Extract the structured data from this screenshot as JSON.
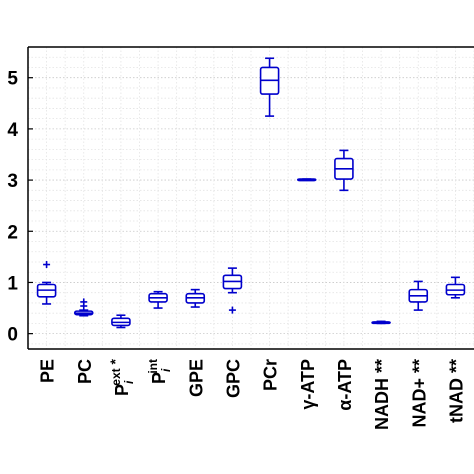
{
  "chart_data": {
    "type": "box",
    "title": "",
    "xlabel": "",
    "ylabel": "",
    "ylim": [
      -0.3,
      5.6
    ],
    "yticks": [
      0,
      1,
      2,
      3,
      4,
      5
    ],
    "grid": true,
    "box_color": "#0000cc",
    "categories": [
      {
        "label": "PE",
        "sup": "",
        "sub": "",
        "suffix": ""
      },
      {
        "label": "PC",
        "sup": "",
        "sub": "",
        "suffix": ""
      },
      {
        "label": "P",
        "sup": "ext",
        "sub": "i",
        "suffix": "*"
      },
      {
        "label": "P",
        "sup": "int",
        "sub": "i",
        "suffix": ""
      },
      {
        "label": "GPE",
        "sup": "",
        "sub": "",
        "suffix": ""
      },
      {
        "label": "GPC",
        "sup": "",
        "sub": "",
        "suffix": ""
      },
      {
        "label": "PCr",
        "sup": "",
        "sub": "",
        "suffix": ""
      },
      {
        "label": "γ-ATP",
        "sup": "",
        "sub": "",
        "suffix": ""
      },
      {
        "label": "α-ATP",
        "sup": "",
        "sub": "",
        "suffix": ""
      },
      {
        "label": "NADH **",
        "sup": "",
        "sub": "",
        "suffix": ""
      },
      {
        "label": "NAD+ **",
        "sup": "",
        "sub": "",
        "suffix": ""
      },
      {
        "label": "tNAD **",
        "sup": "",
        "sub": "",
        "suffix": ""
      }
    ],
    "boxes": [
      {
        "min": 0.58,
        "q1": 0.72,
        "median": 0.85,
        "q3": 0.96,
        "max": 1.0,
        "outliers": [
          1.35
        ]
      },
      {
        "min": 0.35,
        "q1": 0.37,
        "median": 0.4,
        "q3": 0.44,
        "max": 0.46,
        "outliers": [
          0.54,
          0.62
        ]
      },
      {
        "min": 0.12,
        "q1": 0.16,
        "median": 0.22,
        "q3": 0.3,
        "max": 0.36,
        "outliers": []
      },
      {
        "min": 0.5,
        "q1": 0.62,
        "median": 0.7,
        "q3": 0.78,
        "max": 0.82,
        "outliers": []
      },
      {
        "min": 0.52,
        "q1": 0.6,
        "median": 0.7,
        "q3": 0.78,
        "max": 0.86,
        "outliers": []
      },
      {
        "min": 0.8,
        "q1": 0.88,
        "median": 1.02,
        "q3": 1.14,
        "max": 1.28,
        "outliers": [
          0.46
        ]
      },
      {
        "min": 4.25,
        "q1": 4.68,
        "median": 4.95,
        "q3": 5.2,
        "max": 5.38,
        "outliers": []
      },
      {
        "min": 3.0,
        "q1": 3.0,
        "median": 3.01,
        "q3": 3.02,
        "max": 3.02,
        "outliers": []
      },
      {
        "min": 2.8,
        "q1": 3.02,
        "median": 3.22,
        "q3": 3.42,
        "max": 3.58,
        "outliers": []
      },
      {
        "min": 0.2,
        "q1": 0.21,
        "median": 0.22,
        "q3": 0.23,
        "max": 0.24,
        "outliers": []
      },
      {
        "min": 0.46,
        "q1": 0.62,
        "median": 0.74,
        "q3": 0.86,
        "max": 1.02,
        "outliers": []
      },
      {
        "min": 0.7,
        "q1": 0.76,
        "median": 0.85,
        "q3": 0.96,
        "max": 1.1,
        "outliers": []
      }
    ]
  }
}
